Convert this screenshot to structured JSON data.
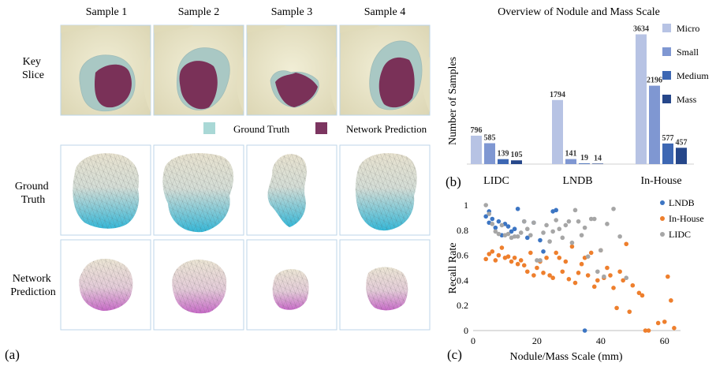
{
  "panel_a": {
    "label": "(a)",
    "columns": [
      "Sample 1",
      "Sample 2",
      "Sample 3",
      "Sample 4"
    ],
    "rows": [
      [
        "Key",
        "Slice"
      ],
      [
        "Ground",
        "Truth"
      ],
      [
        "Network",
        "Prediction"
      ]
    ],
    "legend": [
      {
        "label": "Ground Truth",
        "color": "#a9d8d6"
      },
      {
        "label": "Network Prediction",
        "color": "#7c3560"
      }
    ],
    "colors": {
      "ct_bg": "#ece8c9",
      "gt_region": "#a9c8c4",
      "pred_region": "#7a3158",
      "gt_mesh_top": "#e8e2cf",
      "gt_mesh_bottom": "#35b8d8",
      "pred_mesh_top": "#ebe5d4",
      "pred_mesh_bottom": "#c86bc8",
      "tile_border": "#bcd6e8"
    }
  },
  "chart_data": [
    {
      "label": "(b)",
      "type": "bar",
      "title": "Overview of Nodule and Mass Scale",
      "ylabel": "Number of Samples",
      "categories": [
        "LIDC",
        "LNDB",
        "In-House"
      ],
      "series": [
        {
          "name": "Micro",
          "color": "#b7c3e4",
          "values": [
            796,
            1794,
            3634
          ]
        },
        {
          "name": "Small",
          "color": "#7f97d2",
          "values": [
            585,
            141,
            2196
          ]
        },
        {
          "name": "Medium",
          "color": "#3d67b3",
          "values": [
            139,
            19,
            577
          ]
        },
        {
          "name": "Mass",
          "color": "#26478a",
          "values": [
            105,
            14,
            457
          ]
        }
      ],
      "ylim": [
        0,
        3800
      ],
      "legend": "right"
    },
    {
      "label": "(c)",
      "type": "scatter",
      "xlabel": "Nodule/Mass Scale (mm)",
      "ylabel": "Recall Rate",
      "xlim": [
        0,
        65
      ],
      "ylim": [
        0,
        1
      ],
      "xticks": [
        0,
        20,
        40,
        60
      ],
      "yticks": [
        0,
        0.2,
        0.4,
        0.6,
        0.8,
        1
      ],
      "legend": "top-right",
      "series": [
        {
          "name": "LNDB",
          "color": "#3c75c3",
          "x": [
            4,
            5,
            5,
            6,
            7,
            8,
            9,
            10,
            11,
            12,
            13,
            14,
            16,
            17,
            19,
            21,
            22,
            25,
            26,
            35
          ],
          "y": [
            0.91,
            0.95,
            0.86,
            0.89,
            0.82,
            0.87,
            0.76,
            0.85,
            0.83,
            0.79,
            0.81,
            0.97,
            0.87,
            0.74,
            0.86,
            0.72,
            0.63,
            0.95,
            0.96,
            0.0
          ]
        },
        {
          "name": "In-House",
          "color": "#ee7f2d",
          "x": [
            4,
            5,
            6,
            7,
            8,
            9,
            10,
            11,
            12,
            13,
            14,
            15,
            16,
            17,
            18,
            19,
            20,
            21,
            22,
            23,
            24,
            25,
            26,
            27,
            28,
            29,
            30,
            31,
            32,
            33,
            34,
            35,
            36,
            37,
            38,
            39,
            40,
            41,
            42,
            43,
            44,
            45,
            46,
            47,
            48,
            49,
            50,
            52,
            53,
            54,
            55,
            58,
            60,
            61,
            62,
            63
          ],
          "y": [
            0.57,
            0.61,
            0.63,
            0.56,
            0.6,
            0.66,
            0.58,
            0.59,
            0.55,
            0.58,
            0.53,
            0.56,
            0.52,
            0.47,
            0.62,
            0.44,
            0.5,
            0.55,
            0.46,
            0.58,
            0.44,
            0.42,
            0.62,
            0.58,
            0.47,
            0.55,
            0.41,
            0.67,
            0.38,
            0.46,
            0.53,
            0.58,
            0.44,
            0.62,
            0.35,
            0.4,
            0.64,
            0.42,
            0.5,
            0.44,
            0.34,
            0.18,
            0.47,
            0.4,
            0.69,
            0.15,
            0.36,
            0.3,
            0.28,
            0.0,
            0.0,
            0.06,
            0.07,
            0.43,
            0.24,
            0.02
          ]
        },
        {
          "name": "LIDC",
          "color": "#a6a6a6",
          "x": [
            4,
            5,
            6,
            7,
            8,
            9,
            10,
            11,
            12,
            13,
            14,
            15,
            16,
            17,
            18,
            19,
            20,
            21,
            22,
            23,
            24,
            25,
            26,
            27,
            28,
            29,
            30,
            31,
            32,
            33,
            34,
            35,
            36,
            37,
            38,
            39,
            40,
            41,
            42,
            44,
            46,
            48
          ],
          "y": [
            1.0,
            0.93,
            0.85,
            0.79,
            0.77,
            0.84,
            0.76,
            0.77,
            0.74,
            0.75,
            0.75,
            0.78,
            0.87,
            0.81,
            0.76,
            0.86,
            0.56,
            0.56,
            0.78,
            0.84,
            0.71,
            0.79,
            0.88,
            0.81,
            0.74,
            0.84,
            0.87,
            0.7,
            0.96,
            0.87,
            0.76,
            0.82,
            0.59,
            0.89,
            0.89,
            0.47,
            0.64,
            0.43,
            0.85,
            0.97,
            0.75,
            0.42
          ]
        }
      ]
    }
  ]
}
